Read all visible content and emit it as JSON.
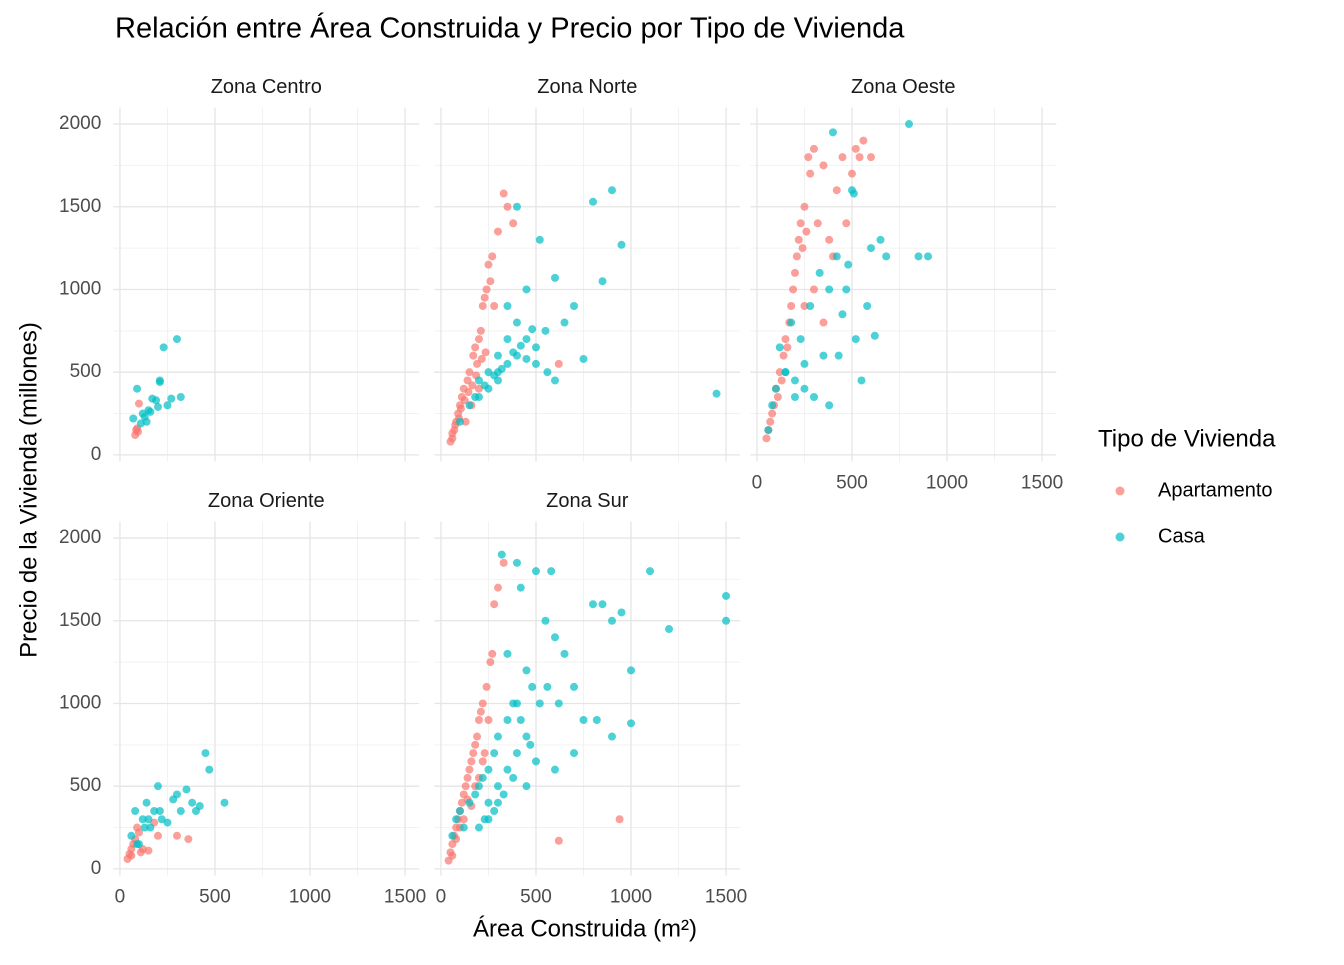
{
  "chart_data": {
    "type": "scatter",
    "title": "Relación entre Área Construida y Precio por Tipo de Vivienda",
    "xlabel": "Área Construida (m²)",
    "ylabel": "Precio de la Vivienda (millones)",
    "legend_title": "Tipo de Vivienda",
    "series": [
      {
        "name": "Apartamento",
        "color": "#F8766D"
      },
      {
        "name": "Casa",
        "color": "#00BFC4"
      }
    ],
    "xlim": [
      -35,
      1575
    ],
    "ylim": [
      -40,
      2100
    ],
    "xticks": [
      0,
      500,
      1000,
      1500
    ],
    "yticks": [
      0,
      500,
      1000,
      1500,
      2000
    ],
    "minor_xticks": [
      250,
      750,
      1250
    ],
    "minor_yticks": [
      250,
      750,
      1250,
      1750
    ],
    "grid": true,
    "panels": [
      {
        "title": "Zona Centro",
        "data": [
          {
            "x": [
              80,
              90,
              100,
              85,
              95
            ],
            "y": [
              120,
              160,
              310,
              150,
              140
            ]
          },
          {
            "x": [
              70,
              90,
              120,
              130,
              150,
              170,
              200,
              210,
              230,
              250,
              270,
              300,
              320,
              160,
              140,
              210,
              190,
              110
            ],
            "y": [
              220,
              400,
              250,
              230,
              270,
              340,
              290,
              440,
              650,
              300,
              340,
              700,
              350,
              260,
              200,
              450,
              330,
              190
            ]
          }
        ]
      },
      {
        "title": "Zona Norte",
        "data": [
          {
            "x": [
              50,
              60,
              70,
              80,
              90,
              100,
              110,
              120,
              130,
              140,
              150,
              160,
              170,
              180,
              190,
              200,
              210,
              220,
              230,
              250,
              270,
              300,
              330,
              350,
              380,
              620,
              200,
              240,
              260,
              280,
              60,
              75,
              95,
              105,
              125,
              145,
              165,
              185,
              215,
              235
            ],
            "y": [
              80,
              100,
              150,
              200,
              250,
              300,
              350,
              400,
              200,
              450,
              500,
              300,
              600,
              650,
              550,
              700,
              750,
              900,
              950,
              1150,
              1200,
              1350,
              1580,
              1500,
              1400,
              550,
              400,
              1000,
              1050,
              900,
              130,
              180,
              220,
              280,
              330,
              380,
              420,
              480,
              580,
              620
            ]
          },
          {
            "x": [
              100,
              150,
              200,
              250,
              300,
              350,
              400,
              450,
              500,
              550,
              600,
              650,
              700,
              750,
              800,
              850,
              900,
              950,
              1450,
              200,
              250,
              300,
              350,
              400,
              450,
              500,
              300,
              350,
              400,
              450,
              280,
              320,
              380,
              420,
              480,
              520,
              560,
              600,
              180,
              230
            ],
            "y": [
              200,
              300,
              350,
              400,
              500,
              550,
              600,
              700,
              650,
              750,
              1070,
              800,
              900,
              580,
              1530,
              1050,
              1600,
              1270,
              370,
              450,
              500,
              600,
              700,
              800,
              1000,
              550,
              450,
              900,
              1500,
              580,
              480,
              520,
              620,
              660,
              760,
              1300,
              500,
              450,
              350,
              420
            ]
          }
        ]
      },
      {
        "title": "Zona Oeste",
        "data": [
          {
            "x": [
              50,
              60,
              70,
              80,
              90,
              100,
              110,
              120,
              130,
              140,
              150,
              160,
              170,
              180,
              190,
              200,
              210,
              220,
              230,
              240,
              250,
              260,
              270,
              280,
              300,
              320,
              350,
              380,
              400,
              420,
              450,
              470,
              500,
              520,
              540,
              560,
              600,
              250,
              300,
              350
            ],
            "y": [
              100,
              150,
              200,
              250,
              300,
              400,
              350,
              500,
              450,
              600,
              700,
              650,
              800,
              900,
              1000,
              1100,
              1200,
              1300,
              1400,
              1250,
              1500,
              1350,
              1800,
              1700,
              1850,
              1400,
              1750,
              1300,
              1200,
              1600,
              1800,
              1400,
              1700,
              1850,
              1800,
              1900,
              1800,
              900,
              1000,
              800
            ]
          },
          {
            "x": [
              60,
              80,
              100,
              120,
              150,
              180,
              200,
              230,
              250,
              280,
              300,
              330,
              350,
              380,
              400,
              420,
              450,
              480,
              500,
              520,
              550,
              580,
              600,
              620,
              650,
              680,
              800,
              850,
              900,
              430,
              470,
              510,
              380,
              250,
              200,
              150
            ],
            "y": [
              150,
              300,
              400,
              650,
              500,
              800,
              450,
              700,
              550,
              900,
              350,
              1100,
              600,
              1000,
              1950,
              1200,
              850,
              1150,
              1600,
              700,
              450,
              900,
              1250,
              720,
              1300,
              1200,
              2000,
              1200,
              1200,
              600,
              1000,
              1580,
              300,
              400,
              350,
              500
            ]
          }
        ]
      },
      {
        "title": "Zona Oriente",
        "data": [
          {
            "x": [
              40,
              50,
              60,
              70,
              80,
              90,
              100,
              120,
              150,
              180,
              200,
              300,
              360,
              60,
              110
            ],
            "y": [
              60,
              90,
              120,
              150,
              180,
              250,
              220,
              120,
              110,
              280,
              200,
              200,
              180,
              80,
              100
            ]
          },
          {
            "x": [
              60,
              80,
              100,
              120,
              140,
              160,
              180,
              200,
              220,
              250,
              280,
              300,
              320,
              350,
              380,
              400,
              420,
              450,
              470,
              550,
              150,
              90,
              130,
              210
            ],
            "y": [
              200,
              350,
              150,
              300,
              400,
              250,
              350,
              500,
              300,
              280,
              420,
              450,
              350,
              480,
              400,
              350,
              380,
              700,
              600,
              400,
              300,
              150,
              250,
              350
            ]
          }
        ]
      },
      {
        "title": "Zona Sur",
        "data": [
          {
            "x": [
              40,
              50,
              60,
              70,
              80,
              90,
              100,
              110,
              120,
              130,
              140,
              150,
              160,
              170,
              180,
              190,
              200,
              210,
              220,
              240,
              260,
              280,
              300,
              330,
              620,
              940,
              100,
              140,
              180,
              220,
              250,
              270,
              60,
              80,
              120,
              160,
              200,
              230
            ],
            "y": [
              50,
              100,
              150,
              200,
              250,
              300,
              350,
              400,
              450,
              500,
              550,
              600,
              650,
              700,
              750,
              800,
              900,
              950,
              1000,
              1100,
              1250,
              1600,
              1700,
              1850,
              170,
              300,
              250,
              420,
              500,
              650,
              900,
              1300,
              80,
              180,
              300,
              380,
              550,
              700
            ]
          },
          {
            "x": [
              60,
              80,
              100,
              120,
              150,
              180,
              200,
              220,
              250,
              280,
              300,
              320,
              350,
              380,
              400,
              420,
              450,
              480,
              500,
              520,
              550,
              580,
              600,
              620,
              650,
              700,
              750,
              800,
              850,
              900,
              950,
              1000,
              1100,
              1200,
              1500,
              1500,
              1000,
              900,
              820,
              700,
              600,
              450,
              400,
              350,
              300,
              250,
              200,
              350,
              400,
              450,
              500,
              300,
              250,
              380,
              420,
              330,
              280,
              230,
              470,
              560
            ],
            "y": [
              200,
              300,
              350,
              250,
              400,
              450,
              500,
              550,
              600,
              700,
              800,
              1900,
              900,
              1000,
              1850,
              1700,
              1200,
              1100,
              1800,
              1000,
              1500,
              1800,
              1400,
              1000,
              1300,
              1100,
              900,
              1600,
              1600,
              1500,
              1550,
              1200,
              1800,
              1450,
              1650,
              1500,
              880,
              800,
              900,
              700,
              600,
              500,
              700,
              600,
              400,
              300,
              250,
              1300,
              1000,
              800,
              650,
              500,
              400,
              550,
              900,
              450,
              350,
              300,
              750,
              1100
            ]
          }
        ]
      }
    ]
  }
}
